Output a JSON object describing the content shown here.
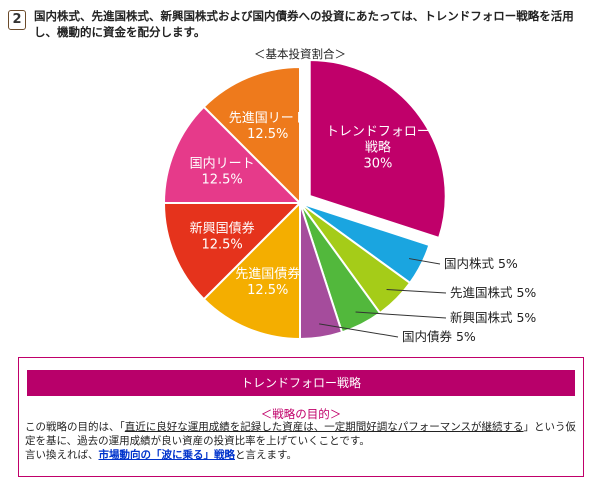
{
  "header": {
    "step_number": "2",
    "intro_text": "国内株式、先進国株式、新興国株式および国内債券への投資にあたっては、トレンドフォロー戦略を活用し、機動的に資金を配分します。"
  },
  "chart_data": {
    "type": "pie",
    "title": "＜基本投資割合＞",
    "slices": [
      {
        "name": "トレンドフォロー戦略",
        "value": 30,
        "label_lines": [
          "トレンドフォロー",
          "戦略",
          "30%"
        ],
        "color": "#c0006a",
        "exploded": true,
        "label_pos": "inside"
      },
      {
        "name": "国内株式",
        "value": 5,
        "label_lines": [
          "国内株式 5%"
        ],
        "color": "#1aa5e0",
        "label_pos": "outside"
      },
      {
        "name": "先進国株式",
        "value": 5,
        "label_lines": [
          "先進国株式 5%"
        ],
        "color": "#a5cc18",
        "label_pos": "outside"
      },
      {
        "name": "新興国株式",
        "value": 5,
        "label_lines": [
          "新興国株式 5%"
        ],
        "color": "#52b83c",
        "label_pos": "outside"
      },
      {
        "name": "国内債券",
        "value": 5,
        "label_lines": [
          "国内債券 5%"
        ],
        "color": "#a54c9c",
        "label_pos": "outside"
      },
      {
        "name": "先進国債券",
        "value": 12.5,
        "label_lines": [
          "先進国債券",
          "12.5%"
        ],
        "color": "#f4ae00",
        "label_pos": "inside"
      },
      {
        "name": "新興国債券",
        "value": 12.5,
        "label_lines": [
          "新興国債券",
          "12.5%"
        ],
        "color": "#e5331c",
        "label_pos": "inside"
      },
      {
        "name": "国内リート",
        "value": 12.5,
        "label_lines": [
          "国内リート",
          "12.5%"
        ],
        "color": "#e63a8a",
        "label_pos": "inside"
      },
      {
        "name": "先進国リート",
        "value": 12.5,
        "label_lines": [
          "先進国リート",
          "12.5%"
        ],
        "color": "#ee7a1c",
        "label_pos": "inside"
      }
    ]
  },
  "strategy_box": {
    "title": "トレンドフォロー戦略",
    "subtitle": "＜戦略の目的＞",
    "line1_a": "この戦略の目的は、「",
    "line1_b": "直近に良好な運用成績を記録した資産は、一定期間好調なパフォーマンスが継続する",
    "line1_c": "」という仮定を基に、過去の運用成績が良い資産の投資比率を上げていくことです。",
    "line2_a": "言い換えれば、",
    "line2_link": "市場動向の「波に乗る」戦略",
    "line2_b": "と言えます。"
  },
  "colors": {
    "accent": "#c0006a",
    "link": "#0033cc"
  }
}
